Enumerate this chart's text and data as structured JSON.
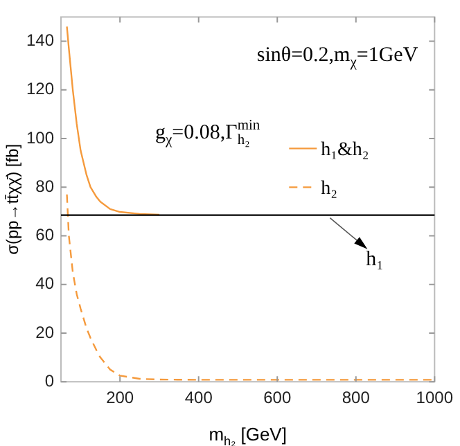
{
  "chart_data": {
    "type": "line",
    "xlabel": "m$_{h₂}$ [GeV]",
    "ylabel": "σ(pp→tt̄χχ̄) [fb]",
    "xlim": [
      50,
      1000
    ],
    "xticks": [
      200,
      400,
      600,
      800,
      1000
    ],
    "ylim": [
      0,
      150
    ],
    "yticks": [
      0,
      20,
      40,
      60,
      80,
      100,
      120,
      140
    ],
    "grid": false,
    "legend": "right",
    "marker": "none",
    "series": [
      {
        "name": "h₁&h₂",
        "color": "#f59a3c",
        "line_style": "solid",
        "x": [
          65,
          70,
          80,
          90,
          100,
          115,
          125,
          140,
          150,
          175,
          200,
          250,
          300
        ],
        "values": [
          146,
          137,
          120,
          106,
          95,
          85,
          80,
          76,
          74,
          71,
          69.8,
          69,
          68.7
        ]
      },
      {
        "name": "h₂",
        "color": "#f59a3c",
        "line_style": "dashed",
        "x": [
          65,
          70,
          80,
          90,
          100,
          115,
          125,
          140,
          150,
          175,
          200,
          250,
          300,
          400,
          600,
          1000
        ],
        "values": [
          77,
          60,
          45,
          36,
          30,
          22,
          18,
          13,
          10,
          5,
          2.5,
          1.2,
          0.9,
          0.8,
          0.8,
          0.8
        ]
      }
    ],
    "ref_lines": [
      {
        "axis": "y",
        "value": 68.5,
        "label": "h₁",
        "color": "#000000",
        "line_style": "solid"
      }
    ],
    "annotations": [
      "sinθ=0.2,m$_{χ}$=1GeV",
      "g$_{χ}$=0.08,Γ$_{h₂}$$^{min}$"
    ]
  }
}
